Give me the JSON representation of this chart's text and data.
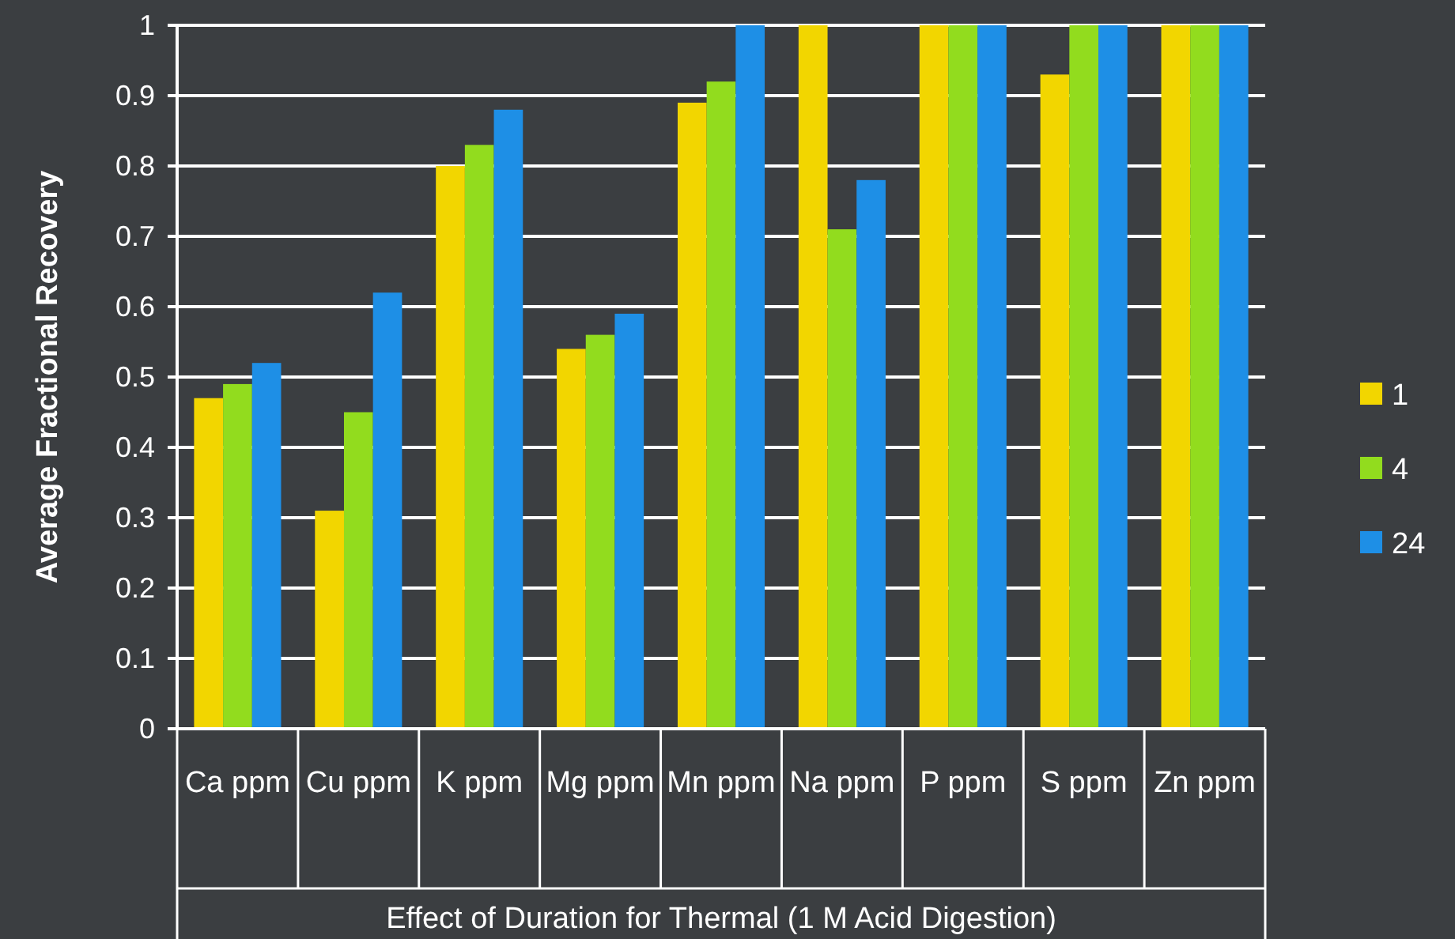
{
  "chart_data": {
    "type": "bar",
    "ylabel": "Average Fractional Recovery",
    "xlabel": "Effect of Duration for Thermal (1 M Acid Digestion)",
    "categories": [
      "Ca ppm",
      "Cu ppm",
      "K ppm",
      "Mg ppm",
      "Mn ppm",
      "Na ppm",
      "P ppm",
      "S ppm",
      "Zn ppm"
    ],
    "series": [
      {
        "name": "1",
        "color": "#f2d600",
        "values": [
          0.47,
          0.31,
          0.8,
          0.54,
          0.89,
          1,
          1,
          0.93,
          1
        ]
      },
      {
        "name": "4",
        "color": "#92dc1e",
        "values": [
          0.49,
          0.45,
          0.83,
          0.56,
          0.92,
          0.71,
          1,
          1,
          1
        ]
      },
      {
        "name": "24",
        "color": "#1e8fe6",
        "values": [
          0.52,
          0.62,
          0.88,
          0.59,
          1,
          0.78,
          1,
          1,
          1
        ]
      }
    ],
    "ylim": [
      0,
      1
    ],
    "yticks": [
      0,
      {
        "value": 0.1,
        "label": "0.1"
      },
      {
        "value": 0.2,
        "label": "0.2"
      },
      {
        "value": 0.3,
        "label": "0.3"
      },
      {
        "value": 0.4,
        "label": "0.4"
      },
      {
        "value": 0.5,
        "label": "0.5"
      },
      {
        "value": 0.6,
        "label": "0.6"
      },
      {
        "value": 0.7,
        "label": "0.7"
      },
      {
        "value": 0.8,
        "label": "0.8"
      },
      {
        "value": 0.9,
        "label": "0.9"
      },
      1
    ],
    "grid": "y",
    "legend": "right"
  }
}
